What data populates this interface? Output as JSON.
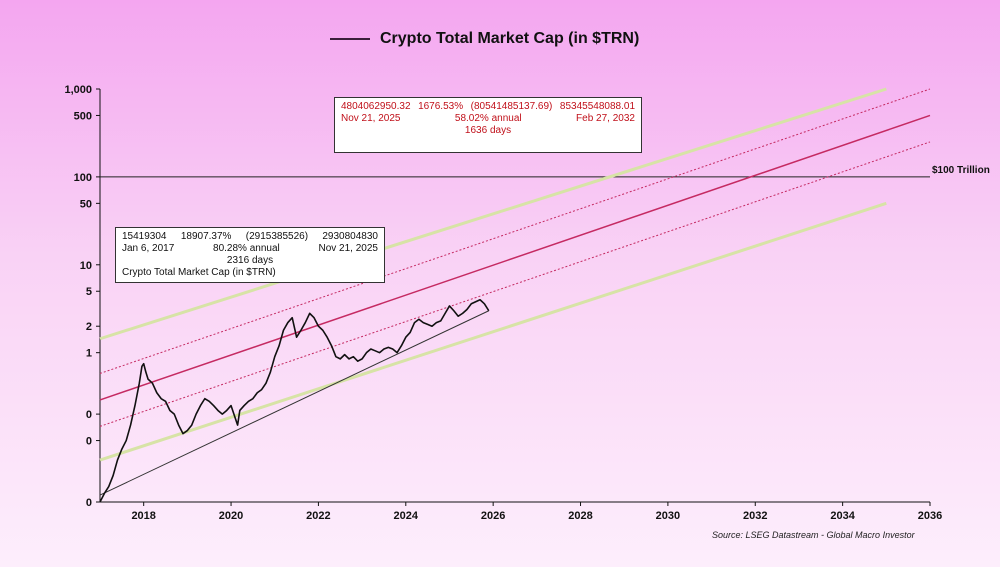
{
  "chart_data": {
    "type": "line",
    "title": "Crypto Total Market Cap (in $TRN)",
    "xlim": [
      2017.0,
      2036.0
    ],
    "x_ticks": [
      "2018",
      "2020",
      "2022",
      "2024",
      "2026",
      "2028",
      "2030",
      "2032",
      "2034",
      "2036"
    ],
    "y_tick_labels": [
      {
        "value": 1000,
        "label": "1,000"
      },
      {
        "value": 500,
        "label": "500"
      },
      {
        "value": 100,
        "label": "100"
      },
      {
        "value": 50,
        "label": "50"
      },
      {
        "value": 10,
        "label": "10"
      },
      {
        "value": 5,
        "label": "5"
      },
      {
        "value": 2,
        "label": "2"
      },
      {
        "value": 1,
        "label": "1"
      },
      {
        "value": 0.2,
        "label": "0"
      },
      {
        "value": 0.1,
        "label": "0"
      },
      {
        "value": 0.02,
        "label": "0"
      }
    ],
    "y_scale": "log",
    "ylim": [
      0.02,
      1000
    ],
    "reference_line": {
      "value": 100,
      "label": "$100 Trillion"
    },
    "series": [
      {
        "name": "Crypto Total Market Cap (in $TRN)",
        "color": "#111111",
        "x": [
          2017.0,
          2017.1,
          2017.2,
          2017.3,
          2017.4,
          2017.5,
          2017.6,
          2017.7,
          2017.8,
          2017.9,
          2017.96,
          2018.0,
          2018.05,
          2018.1,
          2018.2,
          2018.3,
          2018.4,
          2018.5,
          2018.6,
          2018.7,
          2018.8,
          2018.9,
          2019.0,
          2019.1,
          2019.2,
          2019.3,
          2019.4,
          2019.5,
          2019.6,
          2019.7,
          2019.8,
          2019.9,
          2020.0,
          2020.15,
          2020.2,
          2020.3,
          2020.4,
          2020.5,
          2020.6,
          2020.7,
          2020.8,
          2020.9,
          2021.0,
          2021.1,
          2021.2,
          2021.3,
          2021.4,
          2021.5,
          2021.6,
          2021.7,
          2021.8,
          2021.9,
          2022.0,
          2022.1,
          2022.2,
          2022.3,
          2022.4,
          2022.5,
          2022.6,
          2022.7,
          2022.8,
          2022.9,
          2023.0,
          2023.1,
          2023.2,
          2023.3,
          2023.4,
          2023.5,
          2023.6,
          2023.7,
          2023.8,
          2023.9,
          2024.0,
          2024.1,
          2024.2,
          2024.3,
          2024.4,
          2024.5,
          2024.6,
          2024.7,
          2024.8,
          2024.9,
          2025.0,
          2025.1,
          2025.2,
          2025.3,
          2025.4,
          2025.5,
          2025.6,
          2025.7,
          2025.8,
          2025.9
        ],
        "y": [
          0.02,
          0.025,
          0.03,
          0.04,
          0.06,
          0.08,
          0.1,
          0.15,
          0.25,
          0.45,
          0.7,
          0.75,
          0.6,
          0.5,
          0.45,
          0.35,
          0.3,
          0.28,
          0.22,
          0.2,
          0.15,
          0.12,
          0.13,
          0.15,
          0.2,
          0.25,
          0.3,
          0.28,
          0.25,
          0.22,
          0.2,
          0.22,
          0.25,
          0.15,
          0.22,
          0.25,
          0.28,
          0.3,
          0.35,
          0.38,
          0.45,
          0.6,
          0.9,
          1.2,
          1.8,
          2.2,
          2.5,
          1.5,
          1.8,
          2.2,
          2.8,
          2.5,
          2.0,
          1.8,
          1.5,
          1.2,
          0.9,
          0.85,
          0.95,
          0.85,
          0.9,
          0.8,
          0.85,
          1.0,
          1.1,
          1.05,
          1.0,
          1.1,
          1.15,
          1.1,
          1.0,
          1.2,
          1.5,
          1.7,
          2.2,
          2.4,
          2.2,
          2.1,
          2.0,
          2.2,
          2.3,
          2.8,
          3.4,
          3.0,
          2.6,
          2.8,
          3.1,
          3.6,
          3.8,
          4.0,
          3.6,
          3.0
        ]
      }
    ],
    "trend_lines": [
      {
        "color": "#c52a62",
        "dash": false,
        "width": 1.5,
        "x": [
          2017.0,
          2036.0
        ],
        "y": [
          0.29,
          500
        ]
      },
      {
        "color": "#c52a62",
        "dash": true,
        "width": 1,
        "x": [
          2017.0,
          2036.0
        ],
        "y": [
          0.58,
          1000
        ]
      },
      {
        "color": "#c52a62",
        "dash": true,
        "width": 1,
        "x": [
          2017.0,
          2036.0
        ],
        "y": [
          0.145,
          250
        ]
      },
      {
        "color": "#d7e3a6",
        "dash": false,
        "width": 3,
        "x": [
          2017.0,
          2035.0
        ],
        "y": [
          1.44,
          1000
        ]
      },
      {
        "color": "#d7e3a6",
        "dash": false,
        "width": 3,
        "x": [
          2017.0,
          2035.0
        ],
        "y": [
          0.06,
          50
        ]
      },
      {
        "color": "#333333",
        "dash": false,
        "width": 1,
        "x": [
          2017.0,
          2025.9
        ],
        "y": [
          0.024,
          3.0
        ]
      }
    ]
  },
  "box1": {
    "v1": "15419304",
    "v2": "18907.37%",
    "v3": "(2915385526)",
    "v4": "2930804830",
    "d1": "Jan 6, 2017",
    "pct": "80.28%",
    "annual": "annual",
    "d2": "Nov 21, 2025",
    "days": "2316  days",
    "series": "Crypto Total Market Cap (in $TRN)"
  },
  "box2": {
    "v1": "4804062950.32",
    "v2": "1676.53%",
    "v3": "(80541485137.69)",
    "v4": "85345548088.01",
    "d1": "Nov 21, 2025",
    "pct": "58.02%",
    "annual": "annual",
    "d2": "Feb 27, 2032",
    "days": "1636  days"
  },
  "source": "Source: LSEG Datastream - Global Macro Investor"
}
